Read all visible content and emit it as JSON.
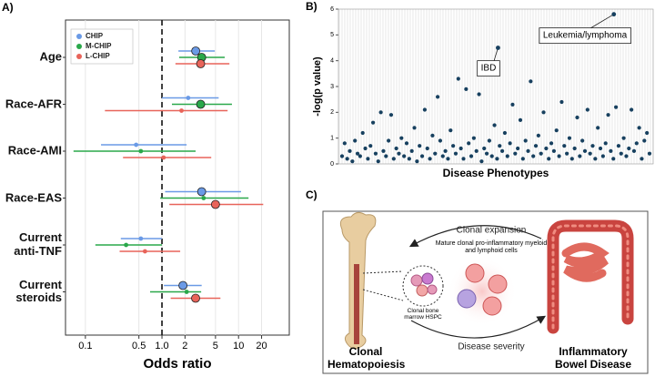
{
  "panel_labels": [
    "A)",
    "B)",
    "C)"
  ],
  "chart_data": [
    {
      "type": "forest",
      "xlabel": "Odds ratio",
      "xscale": "log",
      "xlim": [
        0.055,
        46
      ],
      "xticks": [
        0.1,
        0.5,
        {
          "value": 1,
          "label": "1.0"
        },
        2,
        5,
        10,
        20
      ],
      "reference_line": 1,
      "grid": true,
      "legend": "upper left",
      "categories": [
        "Age",
        "Race-AFR",
        "Race-AMI",
        "Race-EAS",
        "Current anti-TNF",
        "Current steroids"
      ],
      "series": [
        {
          "name": "CHIP",
          "color": "#6a9ae6",
          "values": [
            2.76,
            2.2,
            0.46,
            3.3,
            0.53,
            1.88
          ],
          "lower": [
            1.64,
            1.0,
            0.16,
            1.1,
            0.29,
            1.06
          ],
          "upper": [
            4.9,
            5.5,
            2.1,
            10.8,
            1.0,
            3.3
          ]
        },
        {
          "name": "M-CHIP",
          "color": "#2aa84a",
          "values": [
            3.3,
            3.2,
            0.53,
            3.5,
            0.34,
            2.1
          ],
          "lower": [
            1.68,
            1.35,
            0.07,
            0.95,
            0.135,
            0.7
          ],
          "upper": [
            6.6,
            8.2,
            2.75,
            13.5,
            1.0,
            3.25
          ]
        },
        {
          "name": "L-CHIP",
          "color": "#e8645a",
          "values": [
            3.2,
            1.8,
            1.05,
            5.0,
            0.6,
            2.75
          ],
          "lower": [
            1.5,
            0.18,
            0.31,
            1.25,
            0.28,
            1.3
          ],
          "upper": [
            7.6,
            7.2,
            4.4,
            21,
            1.73,
            5.8
          ]
        }
      ]
    },
    {
      "type": "scatter",
      "ylabel": "-log(p value)",
      "xlabel": "Disease Phenotypes",
      "ylim": [
        0,
        6
      ],
      "yticks": [
        0,
        1,
        2,
        3,
        4,
        5,
        6
      ],
      "color": "#17405f",
      "values": [
        0.3,
        0.8,
        0.2,
        0.5,
        0.1,
        0.9,
        0.4,
        0.3,
        1.2,
        0.6,
        0.2,
        0.7,
        1.6,
        0.4,
        0.1,
        2.0,
        0.5,
        0.3,
        0.9,
        1.9,
        0.2,
        0.6,
        0.4,
        1.0,
        0.3,
        0.8,
        0.2,
        0.5,
        1.4,
        0.1,
        0.7,
        0.3,
        2.1,
        0.6,
        0.2,
        1.1,
        0.4,
        2.6,
        0.9,
        0.3,
        0.5,
        0.2,
        1.3,
        0.7,
        0.4,
        3.3,
        0.6,
        0.2,
        2.9,
        0.8,
        0.3,
        1.0,
        0.5,
        2.7,
        0.1,
        0.6,
        0.4,
        0.9,
        0.3,
        1.5,
        0.2,
        0.7,
        0.5,
        1.2,
        0.3,
        0.8,
        2.3,
        0.4,
        0.6,
        1.7,
        0.2,
        0.9,
        0.5,
        3.2,
        0.3,
        0.7,
        1.1,
        0.4,
        2.0,
        0.6,
        0.2,
        0.8,
        0.5,
        1.3,
        0.3,
        2.4,
        0.7,
        0.4,
        1.0,
        0.2,
        0.6,
        1.8,
        0.3,
        0.9,
        0.5,
        2.1,
        0.4,
        0.7,
        0.2,
        1.4,
        0.6,
        0.3,
        0.8,
        1.9,
        0.5,
        0.2,
        2.2,
        0.7,
        0.4,
        1.0,
        0.3,
        0.6,
        2.1,
        0.5,
        0.8,
        1.4,
        0.2,
        0.9,
        1.2,
        0.4
      ],
      "annotations": [
        {
          "text": "IBD",
          "value": 4.5
        },
        {
          "text": "Leukemia/lymphoma",
          "value": 5.8
        }
      ]
    }
  ],
  "panel_c": {
    "top_arrow": "Clonal expansion",
    "cells_label": "Mature clonal pro-inflammatory myeloid and lymphoid cells",
    "hspc_label": "Clonal bone marrow HSPC",
    "left_label": "Clonal Hematopoiesis",
    "bottom_arrow": "Disease severity",
    "right_label": "Inflammatory Bowel Disease"
  }
}
